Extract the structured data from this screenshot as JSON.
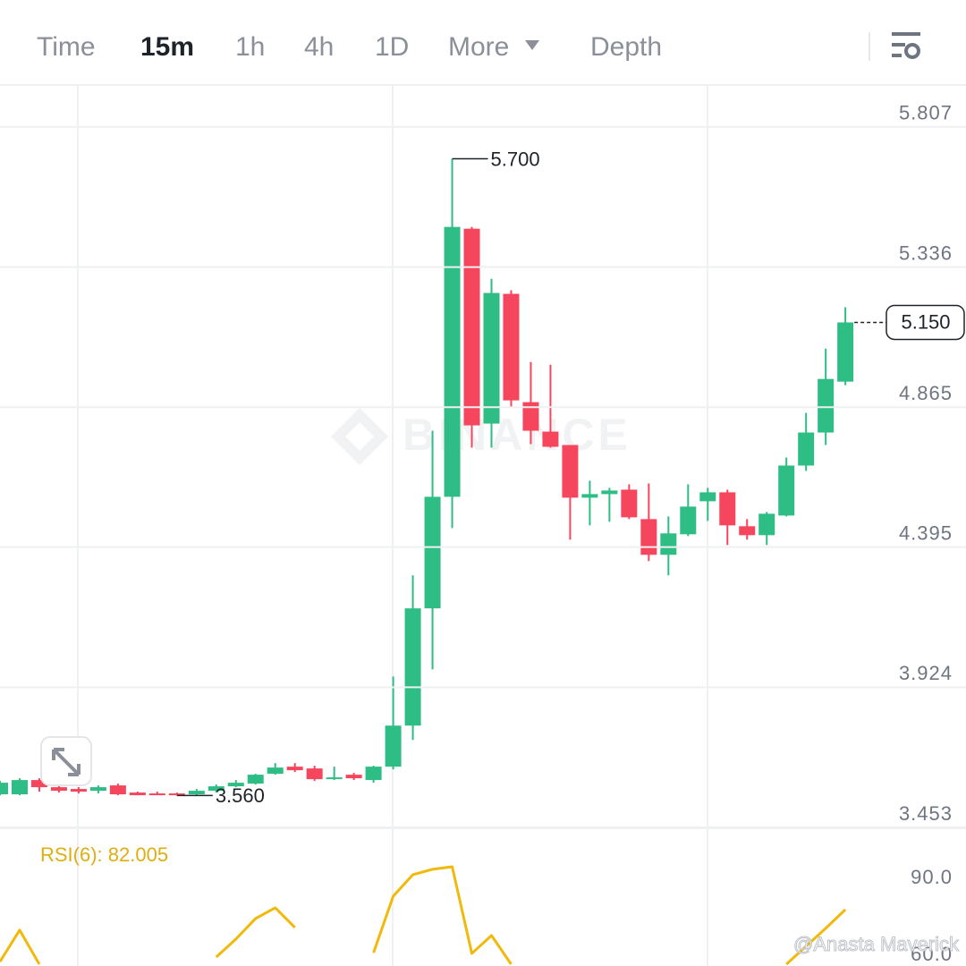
{
  "toolbar": {
    "tabs": [
      "Time",
      "15m",
      "1h",
      "4h",
      "1D",
      "More",
      "Depth"
    ],
    "active": 1
  },
  "watermark": "BINANCE",
  "credit": "@Anasta Maverick",
  "chart_data": [
    {
      "type": "candlestick",
      "categories": [
        null,
        null,
        null,
        null,
        null,
        null,
        null,
        null,
        null,
        null,
        null,
        null,
        null,
        null,
        null,
        null,
        null,
        null,
        null,
        null,
        null,
        null,
        null,
        null,
        null,
        null,
        null,
        null,
        null,
        null,
        null,
        null,
        null,
        null,
        null,
        null,
        null,
        null,
        null,
        null,
        null,
        null,
        null,
        null
      ],
      "open": [
        3.564,
        3.564,
        3.612,
        3.588,
        3.582,
        3.576,
        3.594,
        3.57,
        3.567,
        3.567,
        3.564,
        3.576,
        3.591,
        3.6,
        3.633,
        3.657,
        3.651,
        3.615,
        3.63,
        3.612,
        3.657,
        3.795,
        4.189,
        4.564,
        5.465,
        4.81,
        5.246,
        4.882,
        4.783,
        4.738,
        4.561,
        4.573,
        4.588,
        4.489,
        4.369,
        4.438,
        4.549,
        4.579,
        4.465,
        4.435,
        4.501,
        4.669,
        4.78,
        4.951
      ],
      "high": [
        3.609,
        3.618,
        3.618,
        3.594,
        3.588,
        3.594,
        3.6,
        3.573,
        3.573,
        3.57,
        3.582,
        3.597,
        3.612,
        3.633,
        3.669,
        3.669,
        3.66,
        3.657,
        3.636,
        3.66,
        3.96,
        4.3,
        4.786,
        5.7,
        5.471,
        5.297,
        5.258,
        5.017,
        5.008,
        4.738,
        4.618,
        4.594,
        4.606,
        4.609,
        4.498,
        4.606,
        4.594,
        4.588,
        4.489,
        4.513,
        4.696,
        4.846,
        5.062,
        5.201
      ],
      "low": [
        3.561,
        3.561,
        3.573,
        3.57,
        3.567,
        3.567,
        3.561,
        3.561,
        3.561,
        3.56,
        3.561,
        3.57,
        3.588,
        3.597,
        3.63,
        3.639,
        3.609,
        3.612,
        3.612,
        3.603,
        3.648,
        3.747,
        3.984,
        4.459,
        4.729,
        4.729,
        4.864,
        4.741,
        4.729,
        4.42,
        4.468,
        4.48,
        4.489,
        4.348,
        4.3,
        4.432,
        4.483,
        4.402,
        4.42,
        4.402,
        4.498,
        4.651,
        4.738,
        4.939
      ],
      "close": [
        3.603,
        3.612,
        3.588,
        3.576,
        3.573,
        3.588,
        3.564,
        3.561,
        3.561,
        3.561,
        3.576,
        3.591,
        3.603,
        3.63,
        3.654,
        3.645,
        3.615,
        3.621,
        3.618,
        3.657,
        3.795,
        4.189,
        4.564,
        5.471,
        4.804,
        5.249,
        4.888,
        4.786,
        4.732,
        4.561,
        4.573,
        4.585,
        4.495,
        4.369,
        4.441,
        4.531,
        4.579,
        4.468,
        4.435,
        4.507,
        4.669,
        4.78,
        4.96,
        5.15
      ],
      "up_color": "#2ebd85",
      "down_color": "#f6465d",
      "ylim": [
        3.453,
        5.945
      ],
      "yticks": [
        5.807,
        5.336,
        4.865,
        4.395,
        3.924,
        3.453
      ],
      "grid": true,
      "annotations": [
        {
          "value": 5.7,
          "label": "5.700",
          "of": "high"
        },
        {
          "value": 3.56,
          "label": "3.560",
          "of": "low"
        }
      ],
      "current_price": {
        "value": 5.15,
        "label": "5.150"
      }
    },
    {
      "type": "line",
      "label": "RSI(6): 82.005",
      "categories": [
        null,
        null,
        null,
        null,
        null,
        null,
        null,
        null,
        null,
        null,
        null,
        null,
        null,
        null,
        null,
        null,
        null,
        null,
        null,
        null,
        null,
        null,
        null,
        null,
        null,
        null,
        null,
        null,
        null,
        null,
        null,
        null,
        null,
        null,
        null,
        null,
        null,
        null,
        null,
        null,
        null,
        null,
        null,
        null
      ],
      "values": [
        61.7,
        74.0,
        60.7,
        null,
        null,
        null,
        null,
        null,
        null,
        null,
        null,
        63.5,
        70.5,
        78.5,
        82.7,
        75.0,
        null,
        null,
        null,
        65.2,
        87.2,
        95.6,
        97.7,
        98.7,
        64.9,
        71.9,
        60.7,
        null,
        null,
        null,
        null,
        null,
        null,
        null,
        null,
        null,
        null,
        null,
        null,
        null,
        60.7,
        67.7,
        74.7,
        82.005
      ],
      "color": "#f0b90b",
      "ylim": [
        60,
        113
      ],
      "yticks": [
        {
          "value": 90,
          "label": "90.0"
        },
        {
          "value": 60,
          "label": "60.0"
        }
      ],
      "grid": false
    }
  ]
}
